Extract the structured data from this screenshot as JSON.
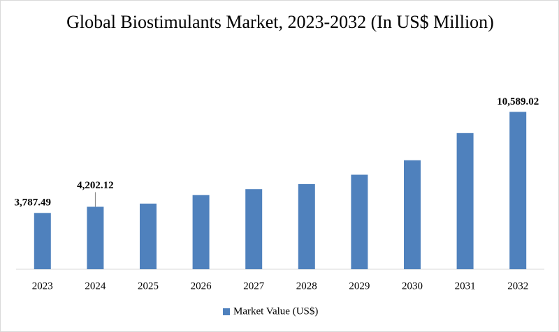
{
  "chart_data": {
    "type": "bar",
    "title": "Global Biostimulants Market, 2023-2032 (In US$ Million)",
    "categories": [
      "2023",
      "2024",
      "2025",
      "2026",
      "2027",
      "2028",
      "2029",
      "2030",
      "2031",
      "2032"
    ],
    "series": [
      {
        "name": "Market Value (US$)",
        "color": "#4f81bd",
        "values": [
          3787.49,
          4202.12,
          4416,
          4988,
          5388,
          5731,
          6359,
          7331,
          9160,
          10589.02
        ],
        "value_labels": [
          "3,787.49",
          "4,202.12",
          null,
          null,
          null,
          null,
          null,
          null,
          null,
          "10,589.02"
        ]
      }
    ],
    "ylim": [
      0,
      13000
    ],
    "legend": "bottom"
  }
}
